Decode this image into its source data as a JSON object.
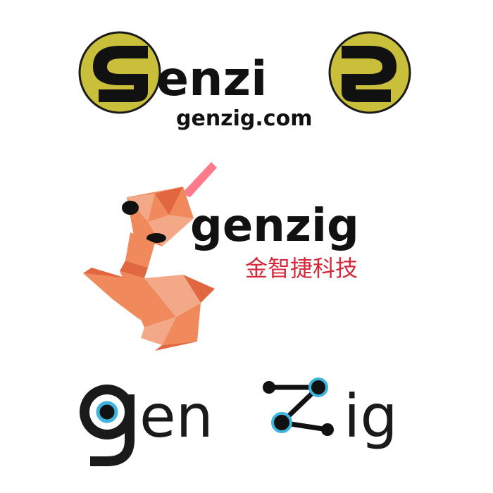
{
  "logos": [
    {
      "wordmark": "genzig",
      "url": "genzig.com",
      "colors": {
        "ring": "#c9bf3a",
        "ink": "#111111",
        "ring_outline": "#1a1a1a"
      }
    },
    {
      "wordmark": "genzig",
      "chinese_name": "金智捷科技",
      "colors": {
        "snake": "#f08a5d",
        "snake_light": "#f3a987",
        "snake_dark": "#e0673f",
        "tongue": "#ff7a8a",
        "ink": "#111111",
        "chinese": "#d6283a"
      }
    },
    {
      "wordmark": "genzig",
      "colors": {
        "ink": "#1a1a1a",
        "dot_ring": "#3fb4dc",
        "node": "#111111"
      }
    }
  ]
}
